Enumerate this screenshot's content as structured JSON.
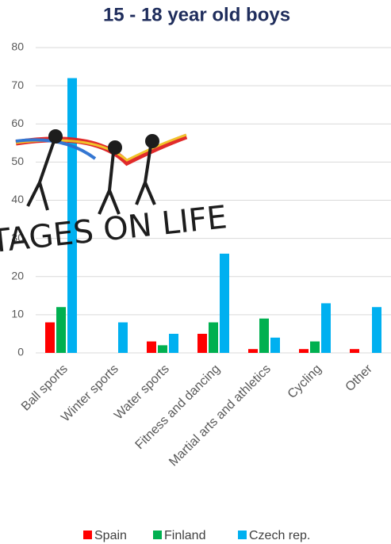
{
  "chart_data": {
    "type": "bar",
    "title": "15 - 18 year old boys",
    "categories": [
      "Ball sports",
      "Winter sports",
      "Water sports",
      "Fitness and dancing",
      "Martial arts and athletics",
      "Cycling",
      "Other"
    ],
    "series": [
      {
        "name": "Spain",
        "color": "#ff0000",
        "values": [
          8,
          0,
          3,
          5,
          1,
          1,
          1
        ]
      },
      {
        "name": "Finland",
        "color": "#00b050",
        "values": [
          12,
          0,
          2,
          8,
          9,
          3,
          0
        ]
      },
      {
        "name": "Czech rep.",
        "color": "#00b0f0",
        "values": [
          72,
          8,
          5,
          26,
          4,
          13,
          12
        ]
      }
    ],
    "ylim": [
      0,
      80
    ],
    "yticks": [
      0,
      10,
      20,
      30,
      40,
      50,
      60,
      70,
      80
    ],
    "grid": true,
    "legend": "bottom",
    "logo": "STAGES ON LIFE"
  }
}
